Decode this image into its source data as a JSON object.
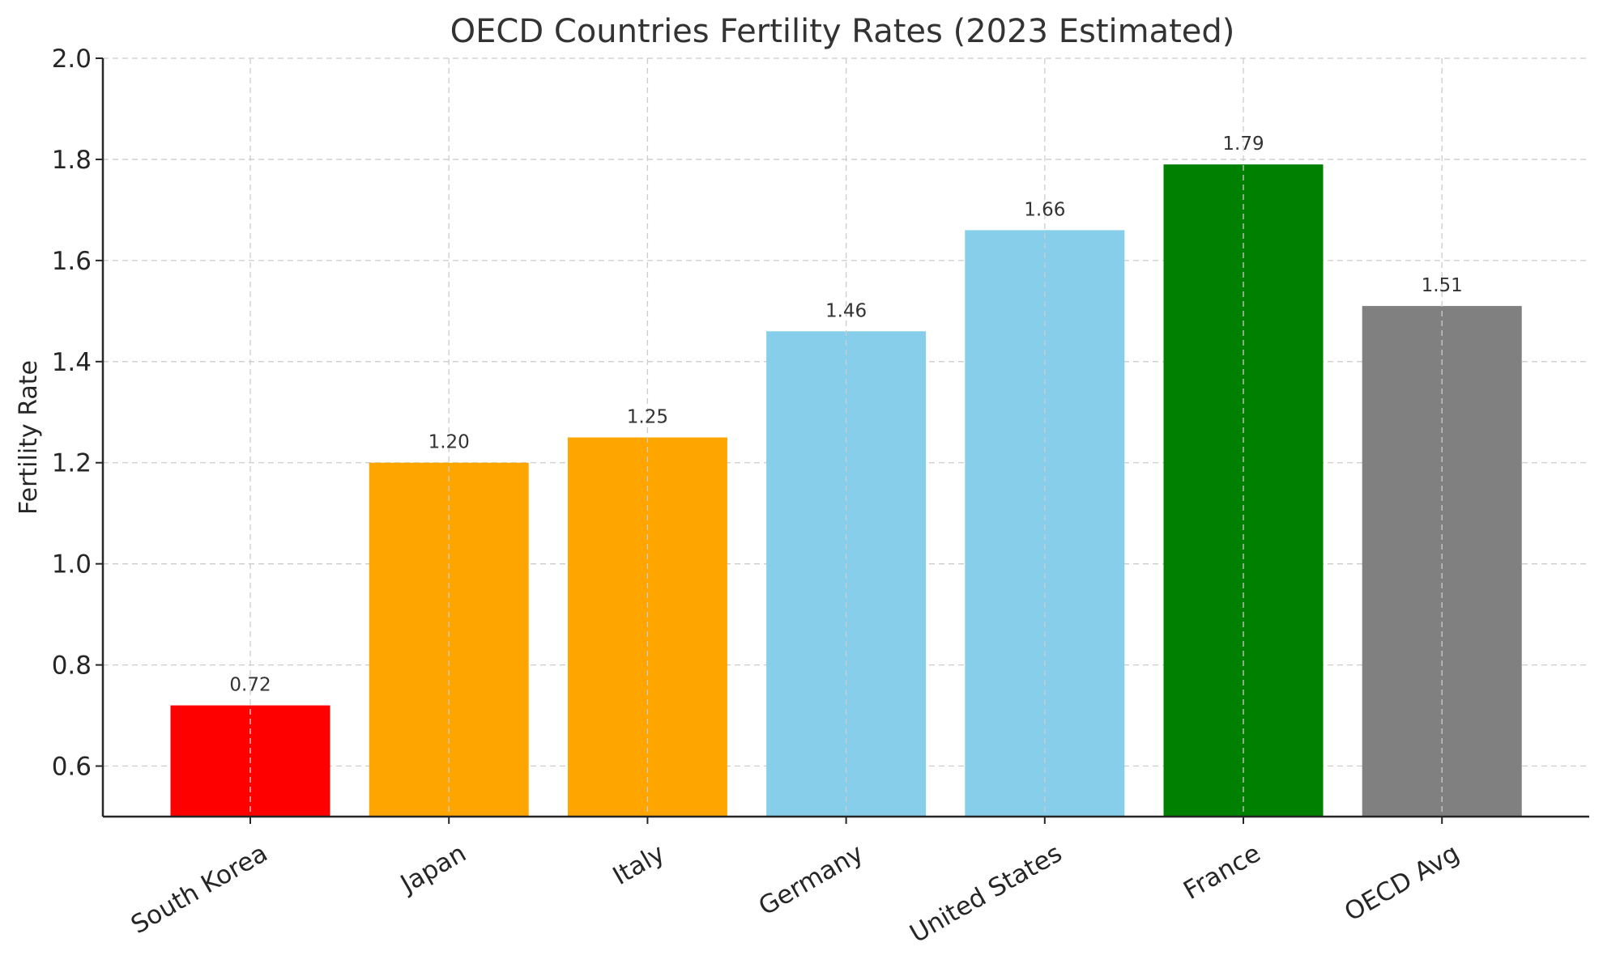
{
  "chart_data": {
    "type": "bar",
    "title": "OECD Countries Fertility Rates (2023 Estimated)",
    "xlabel": "",
    "ylabel": "Fertility Rate",
    "ylim": [
      0.5,
      2.0
    ],
    "yticks": [
      "0.6",
      "0.8",
      "1.0",
      "1.2",
      "1.4",
      "1.6",
      "1.8",
      "2.0"
    ],
    "grid": true,
    "categories": [
      "South Korea",
      "Japan",
      "Italy",
      "Germany",
      "United States",
      "France",
      "OECD Avg"
    ],
    "values": [
      0.72,
      1.2,
      1.25,
      1.46,
      1.66,
      1.79,
      1.51
    ],
    "value_labels": [
      "0.72",
      "1.20",
      "1.25",
      "1.46",
      "1.66",
      "1.79",
      "1.51"
    ],
    "colors": [
      "#ff0000",
      "#ffa500",
      "#ffa500",
      "#87ceeb",
      "#87ceeb",
      "#008000",
      "#808080"
    ]
  }
}
